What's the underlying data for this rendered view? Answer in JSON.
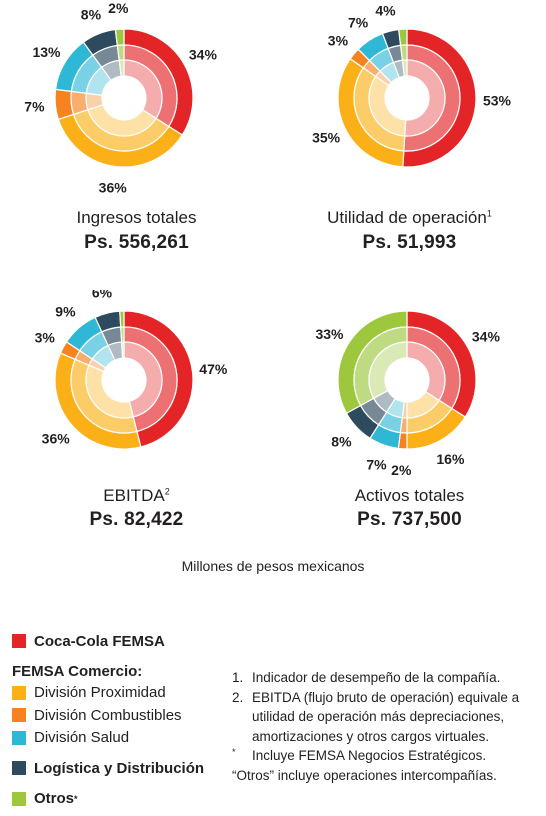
{
  "colors": {
    "coca_cola_femsa": "#e42527",
    "division_proximidad": "#fbb018",
    "division_combustibles": "#f68320",
    "division_salud": "#2fb8d6",
    "logistica": "#2d4a5f",
    "otros": "#9dc83e"
  },
  "chart_data": [
    {
      "type": "pie",
      "title": "Ingresos totales",
      "title_note": "",
      "value_label": "Ps. 556,261",
      "slices": [
        {
          "name": "Coca-Cola FEMSA",
          "value": 34,
          "label": "34%"
        },
        {
          "name": "División Proximidad",
          "value": 36,
          "label": "36%"
        },
        {
          "name": "División Combustibles",
          "value": 7,
          "label": "7%"
        },
        {
          "name": "División Salud",
          "value": 13,
          "label": "13%"
        },
        {
          "name": "Logística y Distribución",
          "value": 8,
          "label": "8%"
        },
        {
          "name": "Otros",
          "value": 2,
          "label": "2%"
        }
      ]
    },
    {
      "type": "pie",
      "title": "Utilidad de operación",
      "title_note": "1",
      "value_label": "Ps. 51,993",
      "slices": [
        {
          "name": "Coca-Cola FEMSA",
          "value": 53,
          "label": "53%"
        },
        {
          "name": "División Proximidad",
          "value": 35,
          "label": "35%"
        },
        {
          "name": "División Combustibles",
          "value": 3,
          "label": "3%"
        },
        {
          "name": "División Salud",
          "value": 7,
          "label": "7%"
        },
        {
          "name": "Logística y Distribución",
          "value": 4,
          "label": "4%"
        },
        {
          "name": "Otros",
          "value": 2,
          "label": ""
        }
      ]
    },
    {
      "type": "pie",
      "title": "EBITDA",
      "title_note": "2",
      "value_label": "Ps. 82,422",
      "slices": [
        {
          "name": "Coca-Cola FEMSA",
          "value": 47,
          "label": "47%"
        },
        {
          "name": "División Proximidad",
          "value": 36,
          "label": "36%"
        },
        {
          "name": "División Combustibles",
          "value": 3,
          "label": "3%"
        },
        {
          "name": "División Salud",
          "value": 9,
          "label": "9%"
        },
        {
          "name": "Logística y Distribución",
          "value": 6,
          "label": "6%"
        },
        {
          "name": "Otros",
          "value": 1,
          "label": ""
        }
      ]
    },
    {
      "type": "pie",
      "title": "Activos totales",
      "title_note": "",
      "value_label": "Ps. 737,500",
      "slices": [
        {
          "name": "Coca-Cola FEMSA",
          "value": 34,
          "label": "34%"
        },
        {
          "name": "División Proximidad",
          "value": 16,
          "label": "16%"
        },
        {
          "name": "División Combustibles",
          "value": 2,
          "label": "2%"
        },
        {
          "name": "División Salud",
          "value": 7,
          "label": "7%"
        },
        {
          "name": "Logística y Distribución",
          "value": 8,
          "label": "8%"
        },
        {
          "name": "Otros",
          "value": 33,
          "label": "33%"
        }
      ]
    }
  ],
  "units": "Millones de pesos mexicanos",
  "legend": {
    "coca": "Coca-Cola FEMSA",
    "comercio_head": "FEMSA Comercio:",
    "proximidad": "División Proximidad",
    "combustibles": "División Combustibles",
    "salud": "División Salud",
    "logistica": "Logística y Distribución",
    "otros": "Otros",
    "otros_note": "*"
  },
  "notes": {
    "n1_num": "1.",
    "n1": "Indicador de desempeño de la compañía.",
    "n2_num": "2.",
    "n2": "EBITDA (flujo bruto de operación) equivale a utilidad de operación más depreciaciones, amortizaciones y otros cargos virtuales.",
    "ast_num": "*",
    "ast": "Incluye FEMSA Negocios Estratégicos.",
    "otros": "“Otros” incluye operaciones intercompañías."
  }
}
